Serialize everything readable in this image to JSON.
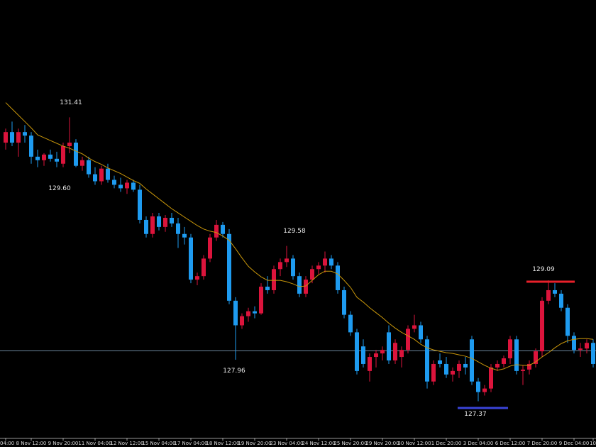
{
  "chart_data": {
    "type": "candlestick",
    "up_color": "#dc143c",
    "down_color": "#1e9bf0",
    "ma_color": "#c8960a",
    "hline_color": "#8fb3d0",
    "ylim": [
      126.92,
      133.08
    ],
    "hline": 128.09,
    "categories": [
      "04:00",
      null,
      null,
      null,
      "8 Nov 12:00",
      null,
      null,
      null,
      null,
      "9 Nov 20:00",
      null,
      null,
      null,
      null,
      "11 Nov 04:00",
      null,
      null,
      null,
      null,
      "12 Nov 12:00",
      null,
      null,
      null,
      null,
      "15 Nov 04:00",
      null,
      null,
      null,
      null,
      "17 Nov 04:00",
      null,
      null,
      null,
      null,
      "18 Nov 12:00",
      null,
      null,
      null,
      null,
      "19 Nov 20:00",
      null,
      null,
      null,
      null,
      "23 Nov 04:00",
      null,
      null,
      null,
      null,
      "24 Nov 12:00",
      null,
      null,
      null,
      null,
      "25 Nov 20:00",
      null,
      null,
      null,
      null,
      "29 Nov 20:00",
      null,
      null,
      null,
      null,
      "30 Nov 12:00",
      null,
      null,
      null,
      null,
      "1 Dec 20:00",
      null,
      null,
      null,
      null,
      "3 Dec 04:00",
      null,
      null,
      null,
      null,
      "6 Dec 12:00",
      null,
      null,
      null,
      null,
      "7 Dec 20:00",
      null,
      null,
      null,
      null,
      "9 Dec 04:00",
      null,
      null,
      "10"
    ],
    "open": [
      131.05,
      131.2,
      131.05,
      131.2,
      131.15,
      130.85,
      130.8,
      130.88,
      130.82,
      130.75,
      131.0,
      131.05,
      130.72,
      130.8,
      130.6,
      130.5,
      130.68,
      130.52,
      130.45,
      130.4,
      130.48,
      130.38,
      129.95,
      129.75,
      130.0,
      129.85,
      129.98,
      129.9,
      129.75,
      129.7,
      129.1,
      129.15,
      129.4,
      129.7,
      129.88,
      129.75,
      128.8,
      128.45,
      128.58,
      128.65,
      128.62,
      129.0,
      128.95,
      129.25,
      129.35,
      129.4,
      129.15,
      128.9,
      129.1,
      129.25,
      129.3,
      129.4,
      129.3,
      128.95,
      128.6,
      128.35,
      128.15,
      127.8,
      128.0,
      128.05,
      128.35,
      127.95,
      128.0,
      128.1,
      128.4,
      128.45,
      128.25,
      127.65,
      127.95,
      127.9,
      127.75,
      127.8,
      127.9,
      128.25,
      127.65,
      127.5,
      127.55,
      127.85,
      127.9,
      127.98,
      128.25,
      127.8,
      127.82,
      127.9,
      128.08,
      128.8,
      128.95,
      128.9,
      128.7,
      128.3,
      128.1,
      128.12,
      128.2
    ],
    "high": [
      131.25,
      131.35,
      131.25,
      131.3,
      131.2,
      130.95,
      130.9,
      130.95,
      130.92,
      131.05,
      131.41,
      131.1,
      130.85,
      130.85,
      130.7,
      130.72,
      130.75,
      130.58,
      130.55,
      130.52,
      130.52,
      130.45,
      130.0,
      130.05,
      130.05,
      130.02,
      130.05,
      129.98,
      129.85,
      129.75,
      129.2,
      129.45,
      129.75,
      129.95,
      129.92,
      129.82,
      128.85,
      128.62,
      128.7,
      128.72,
      129.05,
      129.15,
      129.3,
      129.4,
      129.58,
      129.45,
      129.2,
      129.15,
      129.3,
      129.35,
      129.5,
      129.45,
      129.35,
      129.0,
      128.65,
      128.4,
      128.25,
      128.05,
      128.1,
      128.15,
      128.45,
      128.25,
      128.15,
      128.45,
      128.6,
      128.5,
      128.3,
      127.95,
      128.05,
      128.0,
      127.85,
      127.95,
      128.0,
      128.3,
      127.7,
      127.6,
      127.9,
      127.95,
      128.02,
      128.3,
      128.3,
      127.88,
      127.95,
      128.12,
      128.85,
      129.09,
      129.05,
      128.95,
      128.75,
      128.35,
      128.2,
      128.25,
      128.25
    ],
    "low": [
      130.95,
      131.0,
      130.85,
      131.05,
      130.75,
      130.7,
      130.72,
      130.78,
      130.7,
      130.7,
      130.9,
      130.7,
      130.65,
      130.55,
      130.45,
      130.45,
      130.48,
      130.4,
      130.35,
      130.32,
      130.35,
      129.9,
      129.7,
      129.7,
      129.8,
      129.78,
      129.85,
      129.55,
      129.6,
      129.05,
      129.02,
      129.1,
      129.35,
      129.65,
      129.7,
      128.75,
      127.96,
      128.4,
      128.5,
      128.55,
      128.6,
      128.9,
      128.9,
      129.15,
      129.28,
      129.1,
      128.85,
      128.85,
      129.05,
      129.18,
      129.2,
      129.25,
      128.9,
      128.55,
      128.3,
      127.75,
      127.85,
      127.65,
      127.85,
      127.95,
      127.9,
      127.9,
      127.85,
      128.05,
      128.35,
      128.2,
      127.55,
      127.6,
      127.85,
      127.7,
      127.65,
      127.7,
      127.75,
      127.6,
      127.37,
      127.45,
      127.5,
      127.8,
      127.85,
      127.9,
      127.75,
      127.6,
      127.75,
      127.85,
      128.0,
      128.75,
      128.85,
      128.65,
      128.2,
      128.05,
      128.0,
      128.05,
      127.85
    ],
    "close": [
      131.2,
      131.05,
      131.2,
      131.15,
      130.85,
      130.8,
      130.88,
      130.82,
      130.78,
      131.0,
      131.05,
      130.72,
      130.8,
      130.6,
      130.5,
      130.68,
      130.52,
      130.45,
      130.4,
      130.48,
      130.38,
      129.95,
      129.75,
      130.0,
      129.85,
      129.98,
      129.9,
      129.75,
      129.7,
      129.1,
      129.15,
      129.4,
      129.7,
      129.88,
      129.75,
      128.8,
      128.45,
      128.58,
      128.65,
      128.62,
      129.0,
      128.95,
      129.25,
      129.35,
      129.4,
      129.15,
      128.9,
      129.1,
      129.25,
      129.3,
      129.4,
      129.3,
      128.95,
      128.6,
      128.35,
      127.8,
      127.9,
      128.0,
      128.05,
      128.1,
      127.95,
      128.2,
      128.1,
      128.4,
      128.45,
      128.25,
      127.65,
      127.9,
      127.9,
      127.75,
      127.8,
      127.9,
      127.85,
      127.65,
      127.5,
      127.55,
      127.85,
      127.9,
      127.98,
      128.25,
      127.8,
      127.82,
      127.9,
      128.08,
      128.8,
      128.95,
      128.9,
      128.7,
      128.3,
      128.1,
      128.12,
      128.2,
      127.9
    ],
    "ma": [
      131.62,
      131.53,
      131.44,
      131.35,
      131.26,
      131.16,
      131.12,
      131.08,
      131.04,
      131.0,
      130.97,
      130.93,
      130.89,
      130.83,
      130.78,
      130.74,
      130.69,
      130.65,
      130.61,
      130.56,
      130.51,
      130.47,
      130.39,
      130.32,
      130.25,
      130.18,
      130.11,
      130.05,
      129.99,
      129.93,
      129.87,
      129.82,
      129.79,
      129.77,
      129.72,
      129.66,
      129.54,
      129.41,
      129.29,
      129.21,
      129.14,
      129.09,
      129.09,
      129.09,
      129.07,
      129.04,
      129.0,
      129.01,
      129.09,
      129.17,
      129.22,
      129.22,
      129.18,
      129.09,
      128.99,
      128.85,
      128.78,
      128.7,
      128.63,
      128.56,
      128.48,
      128.41,
      128.35,
      128.3,
      128.25,
      128.18,
      128.13,
      128.1,
      128.08,
      128.06,
      128.05,
      128.03,
      128.01,
      127.98,
      127.93,
      127.88,
      127.84,
      127.81,
      127.83,
      127.87,
      127.89,
      127.88,
      127.88,
      127.93,
      128.0,
      128.06,
      128.13,
      128.19,
      128.23,
      128.25,
      128.26,
      128.26,
      128.25
    ],
    "annotations": [
      "131.41",
      "129.60",
      "129.58",
      "127.96",
      "129.09",
      "127.37"
    ]
  }
}
